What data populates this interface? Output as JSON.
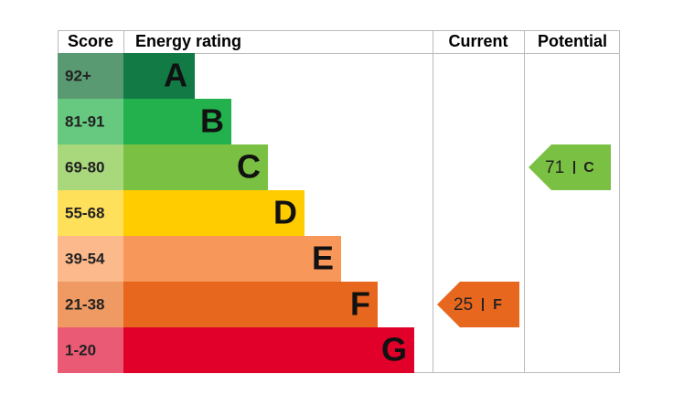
{
  "headers": {
    "score": "Score",
    "rating": "Energy rating",
    "current": "Current",
    "potential": "Potential"
  },
  "bands": [
    {
      "score": "92+",
      "letter": "A",
      "color": "#117a45",
      "score_color": "#5a9a73"
    },
    {
      "score": "81-91",
      "letter": "B",
      "color": "#22b14c",
      "score_color": "#66c97f"
    },
    {
      "score": "69-80",
      "letter": "C",
      "color": "#7ac143",
      "score_color": "#a8d77c"
    },
    {
      "score": "55-68",
      "letter": "D",
      "color": "#ffcc00",
      "score_color": "#ffe05a"
    },
    {
      "score": "39-54",
      "letter": "E",
      "color": "#f7985a",
      "score_color": "#fbb98c"
    },
    {
      "score": "21-38",
      "letter": "F",
      "color": "#e8671e",
      "score_color": "#ef9a63"
    },
    {
      "score": "1-20",
      "letter": "G",
      "color": "#e0002a",
      "score_color": "#ea5a75"
    }
  ],
  "current": {
    "value": 25,
    "letter": "F"
  },
  "potential": {
    "value": 71,
    "letter": "C"
  }
}
